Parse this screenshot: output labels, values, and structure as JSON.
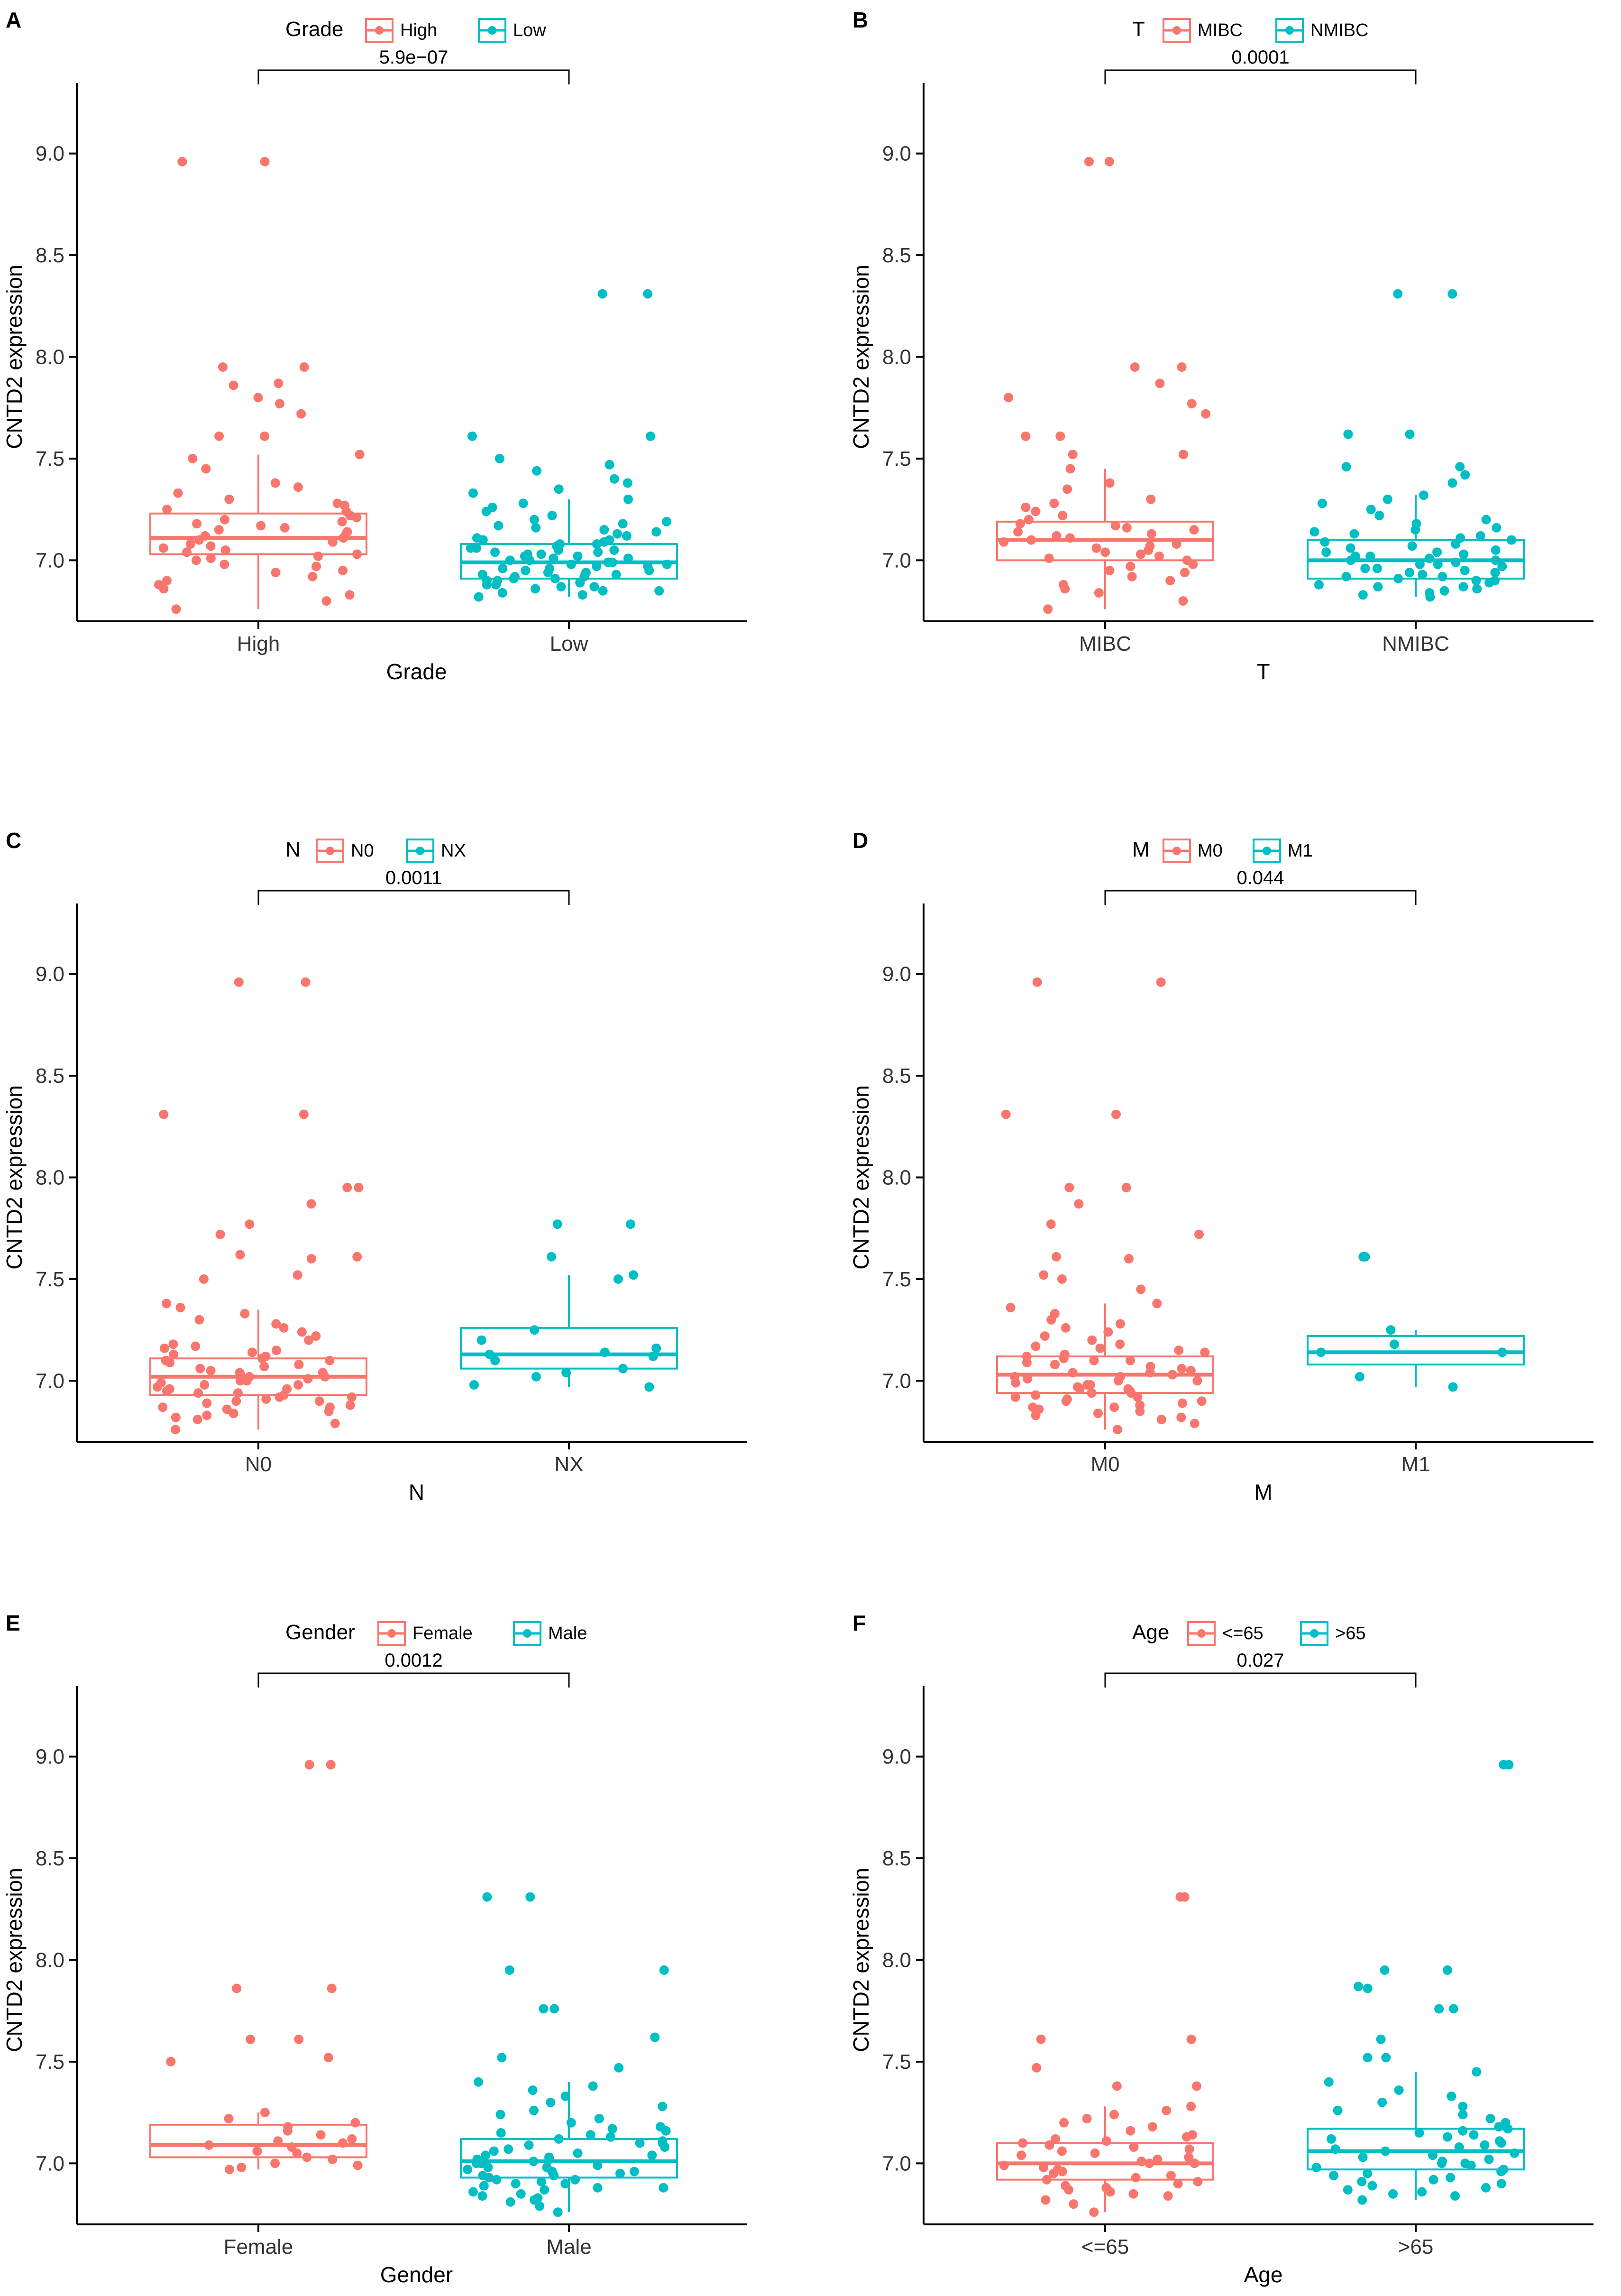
{
  "colors": {
    "group1": "#F8766D",
    "group2": "#00BFC4",
    "axis": "#000000"
  },
  "chart_data": [
    {
      "panel_label": "A",
      "type": "box",
      "title": "",
      "legend": {
        "title": "Grade",
        "entries": [
          "High",
          "Low"
        ],
        "position": "top"
      },
      "xlabel": "Grade",
      "ylabel": "CNTD2 expression",
      "ylim": [
        6.7,
        9.3
      ],
      "yticks": [
        "7.0",
        "7.5",
        "8.0",
        "8.5",
        "9.0"
      ],
      "categories": [
        "High",
        "Low"
      ],
      "pvalue": "5.9e−07",
      "boxes": [
        {
          "name": "High",
          "q1": 7.03,
          "median": 7.11,
          "q3": 7.23,
          "lower": 6.76,
          "upper": 7.52,
          "points": [
            6.76,
            6.8,
            6.83,
            6.86,
            6.88,
            6.9,
            6.92,
            6.94,
            6.95,
            6.97,
            6.98,
            7.0,
            7.01,
            7.02,
            7.03,
            7.04,
            7.05,
            7.06,
            7.07,
            7.08,
            7.09,
            7.1,
            7.11,
            7.12,
            7.13,
            7.14,
            7.15,
            7.16,
            7.17,
            7.18,
            7.19,
            7.2,
            7.21,
            7.22,
            7.24,
            7.25,
            7.27,
            7.28,
            7.3,
            7.33,
            7.36,
            7.38,
            7.45,
            7.5,
            7.52,
            7.61,
            7.61,
            7.72,
            7.77,
            7.8,
            7.86,
            7.87,
            7.95,
            7.95,
            8.96,
            8.96
          ]
        },
        {
          "name": "Low",
          "q1": 6.91,
          "median": 6.99,
          "q3": 7.08,
          "lower": 6.82,
          "upper": 7.3,
          "points": [
            6.82,
            6.83,
            6.84,
            6.85,
            6.85,
            6.86,
            6.87,
            6.87,
            6.88,
            6.88,
            6.89,
            6.9,
            6.9,
            6.91,
            6.91,
            6.92,
            6.92,
            6.93,
            6.93,
            6.94,
            6.94,
            6.95,
            6.95,
            6.96,
            6.96,
            6.97,
            6.97,
            6.98,
            6.98,
            6.99,
            6.99,
            7.0,
            7.0,
            7.01,
            7.01,
            7.02,
            7.02,
            7.03,
            7.03,
            7.04,
            7.04,
            7.05,
            7.05,
            7.06,
            7.06,
            7.07,
            7.08,
            7.08,
            7.09,
            7.1,
            7.1,
            7.11,
            7.12,
            7.13,
            7.14,
            7.15,
            7.16,
            7.17,
            7.18,
            7.19,
            7.2,
            7.22,
            7.24,
            7.26,
            7.28,
            7.3,
            7.33,
            7.35,
            7.38,
            7.4,
            7.44,
            7.47,
            7.5,
            7.61,
            7.61,
            8.31,
            8.31
          ]
        }
      ]
    },
    {
      "panel_label": "B",
      "type": "box",
      "title": "",
      "legend": {
        "title": "T",
        "entries": [
          "MIBC",
          "NMIBC"
        ],
        "position": "top"
      },
      "xlabel": "T",
      "ylabel": "CNTD2 expression",
      "ylim": [
        6.7,
        9.3
      ],
      "yticks": [
        "7.0",
        "7.5",
        "8.0",
        "8.5",
        "9.0"
      ],
      "categories": [
        "MIBC",
        "NMIBC"
      ],
      "pvalue": "0.0001",
      "boxes": [
        {
          "name": "MIBC",
          "q1": 7.0,
          "median": 7.1,
          "q3": 7.19,
          "lower": 6.76,
          "upper": 7.45,
          "points": [
            6.76,
            6.8,
            6.84,
            6.86,
            6.88,
            6.9,
            6.92,
            6.94,
            6.95,
            6.97,
            6.98,
            7.0,
            7.01,
            7.02,
            7.03,
            7.04,
            7.05,
            7.06,
            7.07,
            7.08,
            7.09,
            7.1,
            7.11,
            7.12,
            7.13,
            7.14,
            7.15,
            7.16,
            7.17,
            7.18,
            7.2,
            7.22,
            7.24,
            7.26,
            7.28,
            7.3,
            7.35,
            7.38,
            7.45,
            7.52,
            7.52,
            7.61,
            7.61,
            7.72,
            7.77,
            7.8,
            7.87,
            7.95,
            7.95,
            8.96,
            8.96
          ]
        },
        {
          "name": "NMIBC",
          "q1": 6.91,
          "median": 7.0,
          "q3": 7.1,
          "lower": 6.82,
          "upper": 7.32,
          "points": [
            6.82,
            6.83,
            6.84,
            6.85,
            6.86,
            6.87,
            6.87,
            6.88,
            6.89,
            6.9,
            6.9,
            6.91,
            6.92,
            6.92,
            6.93,
            6.94,
            6.94,
            6.95,
            6.96,
            6.96,
            6.97,
            6.98,
            6.98,
            6.99,
            7.0,
            7.0,
            7.01,
            7.02,
            7.02,
            7.03,
            7.04,
            7.04,
            7.05,
            7.06,
            7.07,
            7.08,
            7.09,
            7.1,
            7.11,
            7.12,
            7.13,
            7.14,
            7.15,
            7.16,
            7.18,
            7.2,
            7.22,
            7.25,
            7.28,
            7.3,
            7.32,
            7.38,
            7.42,
            7.46,
            7.46,
            7.62,
            7.62,
            8.31,
            8.31
          ]
        }
      ]
    },
    {
      "panel_label": "C",
      "type": "box",
      "title": "",
      "legend": {
        "title": "N",
        "entries": [
          "N0",
          "NX"
        ],
        "position": "top"
      },
      "xlabel": "N",
      "ylabel": "CNTD2 expression",
      "ylim": [
        6.7,
        9.3
      ],
      "yticks": [
        "7.0",
        "7.5",
        "8.0",
        "8.5",
        "9.0"
      ],
      "categories": [
        "N0",
        "NX"
      ],
      "pvalue": "0.0011",
      "boxes": [
        {
          "name": "N0",
          "q1": 6.93,
          "median": 7.02,
          "q3": 7.11,
          "lower": 6.76,
          "upper": 7.35,
          "points": [
            6.76,
            6.79,
            6.81,
            6.82,
            6.83,
            6.84,
            6.85,
            6.86,
            6.87,
            6.87,
            6.88,
            6.89,
            6.9,
            6.9,
            6.91,
            6.92,
            6.92,
            6.93,
            6.94,
            6.94,
            6.95,
            6.96,
            6.96,
            6.97,
            6.98,
            6.98,
            6.99,
            7.0,
            7.0,
            7.01,
            7.02,
            7.02,
            7.03,
            7.04,
            7.04,
            7.05,
            7.06,
            7.07,
            7.08,
            7.09,
            7.1,
            7.1,
            7.11,
            7.12,
            7.13,
            7.14,
            7.15,
            7.16,
            7.17,
            7.18,
            7.2,
            7.22,
            7.24,
            7.26,
            7.28,
            7.3,
            7.33,
            7.36,
            7.38,
            7.5,
            7.52,
            7.6,
            7.61,
            7.62,
            7.72,
            7.77,
            7.87,
            7.95,
            7.95,
            8.31,
            8.31,
            8.96,
            8.96
          ]
        },
        {
          "name": "NX",
          "q1": 7.06,
          "median": 7.13,
          "q3": 7.26,
          "lower": 6.97,
          "upper": 7.52,
          "points": [
            6.97,
            6.98,
            7.02,
            7.04,
            7.06,
            7.1,
            7.12,
            7.13,
            7.14,
            7.16,
            7.2,
            7.25,
            7.5,
            7.52,
            7.61,
            7.77,
            7.77
          ]
        }
      ]
    },
    {
      "panel_label": "D",
      "type": "box",
      "title": "",
      "legend": {
        "title": "M",
        "entries": [
          "M0",
          "M1"
        ],
        "position": "top"
      },
      "xlabel": "M",
      "ylabel": "CNTD2 expression",
      "ylim": [
        6.7,
        9.3
      ],
      "yticks": [
        "7.0",
        "7.5",
        "8.0",
        "8.5",
        "9.0"
      ],
      "categories": [
        "M0",
        "M1"
      ],
      "pvalue": "0.044",
      "boxes": [
        {
          "name": "M0",
          "q1": 6.94,
          "median": 7.03,
          "q3": 7.12,
          "lower": 6.76,
          "upper": 7.38,
          "points": [
            6.76,
            6.79,
            6.81,
            6.82,
            6.83,
            6.84,
            6.85,
            6.86,
            6.87,
            6.87,
            6.88,
            6.89,
            6.9,
            6.9,
            6.91,
            6.92,
            6.92,
            6.93,
            6.94,
            6.94,
            6.95,
            6.96,
            6.96,
            6.97,
            6.98,
            6.98,
            6.99,
            7.0,
            7.0,
            7.01,
            7.02,
            7.02,
            7.03,
            7.04,
            7.04,
            7.05,
            7.06,
            7.07,
            7.08,
            7.09,
            7.1,
            7.1,
            7.11,
            7.12,
            7.13,
            7.14,
            7.15,
            7.16,
            7.17,
            7.18,
            7.2,
            7.22,
            7.24,
            7.26,
            7.28,
            7.3,
            7.33,
            7.36,
            7.38,
            7.45,
            7.5,
            7.52,
            7.6,
            7.61,
            7.72,
            7.77,
            7.87,
            7.95,
            7.95,
            8.31,
            8.31,
            8.96,
            8.96
          ]
        },
        {
          "name": "M1",
          "q1": 7.08,
          "median": 7.14,
          "q3": 7.22,
          "lower": 6.97,
          "upper": 7.25,
          "points": [
            6.97,
            7.02,
            7.14,
            7.14,
            7.18,
            7.25,
            7.61,
            7.61
          ]
        }
      ]
    },
    {
      "panel_label": "E",
      "type": "box",
      "title": "",
      "legend": {
        "title": "Gender",
        "entries": [
          "Female",
          "Male"
        ],
        "position": "top"
      },
      "xlabel": "Gender",
      "ylabel": "CNTD2 expression",
      "ylim": [
        6.7,
        9.3
      ],
      "yticks": [
        "7.0",
        "7.5",
        "8.0",
        "8.5",
        "9.0"
      ],
      "categories": [
        "Female",
        "Male"
      ],
      "pvalue": "0.0012",
      "boxes": [
        {
          "name": "Female",
          "q1": 7.03,
          "median": 7.09,
          "q3": 7.19,
          "lower": 6.97,
          "upper": 7.25,
          "points": [
            6.97,
            6.98,
            6.99,
            7.0,
            7.02,
            7.03,
            7.05,
            7.06,
            7.08,
            7.09,
            7.1,
            7.11,
            7.12,
            7.14,
            7.16,
            7.18,
            7.2,
            7.22,
            7.25,
            7.5,
            7.52,
            7.61,
            7.61,
            7.86,
            7.86,
            8.96,
            8.96
          ]
        },
        {
          "name": "Male",
          "q1": 6.93,
          "median": 7.01,
          "q3": 7.12,
          "lower": 6.76,
          "upper": 7.4,
          "points": [
            6.76,
            6.79,
            6.81,
            6.82,
            6.83,
            6.84,
            6.85,
            6.86,
            6.87,
            6.88,
            6.88,
            6.89,
            6.9,
            6.9,
            6.91,
            6.92,
            6.92,
            6.93,
            6.94,
            6.94,
            6.95,
            6.96,
            6.96,
            6.97,
            6.98,
            6.98,
            6.99,
            7.0,
            7.0,
            7.01,
            7.02,
            7.02,
            7.03,
            7.04,
            7.04,
            7.05,
            7.06,
            7.07,
            7.08,
            7.09,
            7.1,
            7.1,
            7.11,
            7.12,
            7.13,
            7.14,
            7.15,
            7.16,
            7.17,
            7.18,
            7.2,
            7.22,
            7.24,
            7.26,
            7.28,
            7.3,
            7.33,
            7.36,
            7.38,
            7.4,
            7.47,
            7.52,
            7.62,
            7.76,
            7.76,
            7.95,
            7.95,
            8.31,
            8.31
          ]
        }
      ]
    },
    {
      "panel_label": "F",
      "type": "box",
      "title": "",
      "legend": {
        "title": "Age",
        "entries": [
          "<=65",
          ">65"
        ],
        "position": "top"
      },
      "xlabel": "Age",
      "ylabel": "CNTD2 expression",
      "ylim": [
        6.7,
        9.3
      ],
      "yticks": [
        "7.0",
        "7.5",
        "8.0",
        "8.5",
        "9.0"
      ],
      "categories": [
        "<=65",
        ">65"
      ],
      "pvalue": "0.027",
      "boxes": [
        {
          "name": "<=65",
          "q1": 6.92,
          "median": 7.0,
          "q3": 7.1,
          "lower": 6.76,
          "upper": 7.28,
          "points": [
            6.76,
            6.8,
            6.82,
            6.84,
            6.85,
            6.86,
            6.87,
            6.88,
            6.89,
            6.9,
            6.91,
            6.92,
            6.93,
            6.94,
            6.95,
            6.96,
            6.97,
            6.98,
            6.99,
            7.0,
            7.0,
            7.01,
            7.02,
            7.03,
            7.04,
            7.05,
            7.06,
            7.07,
            7.08,
            7.09,
            7.1,
            7.11,
            7.12,
            7.13,
            7.14,
            7.16,
            7.18,
            7.2,
            7.22,
            7.24,
            7.26,
            7.28,
            7.38,
            7.38,
            7.47,
            7.61,
            7.61,
            8.31,
            8.31
          ]
        },
        {
          "name": ">65",
          "q1": 6.97,
          "median": 7.06,
          "q3": 7.17,
          "lower": 6.82,
          "upper": 7.45,
          "points": [
            6.82,
            6.84,
            6.85,
            6.86,
            6.87,
            6.88,
            6.89,
            6.9,
            6.91,
            6.92,
            6.93,
            6.94,
            6.95,
            6.96,
            6.97,
            6.98,
            6.99,
            7.0,
            7.0,
            7.01,
            7.02,
            7.03,
            7.04,
            7.05,
            7.06,
            7.07,
            7.08,
            7.09,
            7.1,
            7.11,
            7.12,
            7.13,
            7.14,
            7.15,
            7.16,
            7.17,
            7.18,
            7.2,
            7.22,
            7.24,
            7.26,
            7.28,
            7.3,
            7.33,
            7.36,
            7.4,
            7.45,
            7.52,
            7.52,
            7.61,
            7.76,
            7.76,
            7.86,
            7.87,
            7.95,
            7.95,
            8.96,
            8.96
          ]
        }
      ]
    }
  ]
}
